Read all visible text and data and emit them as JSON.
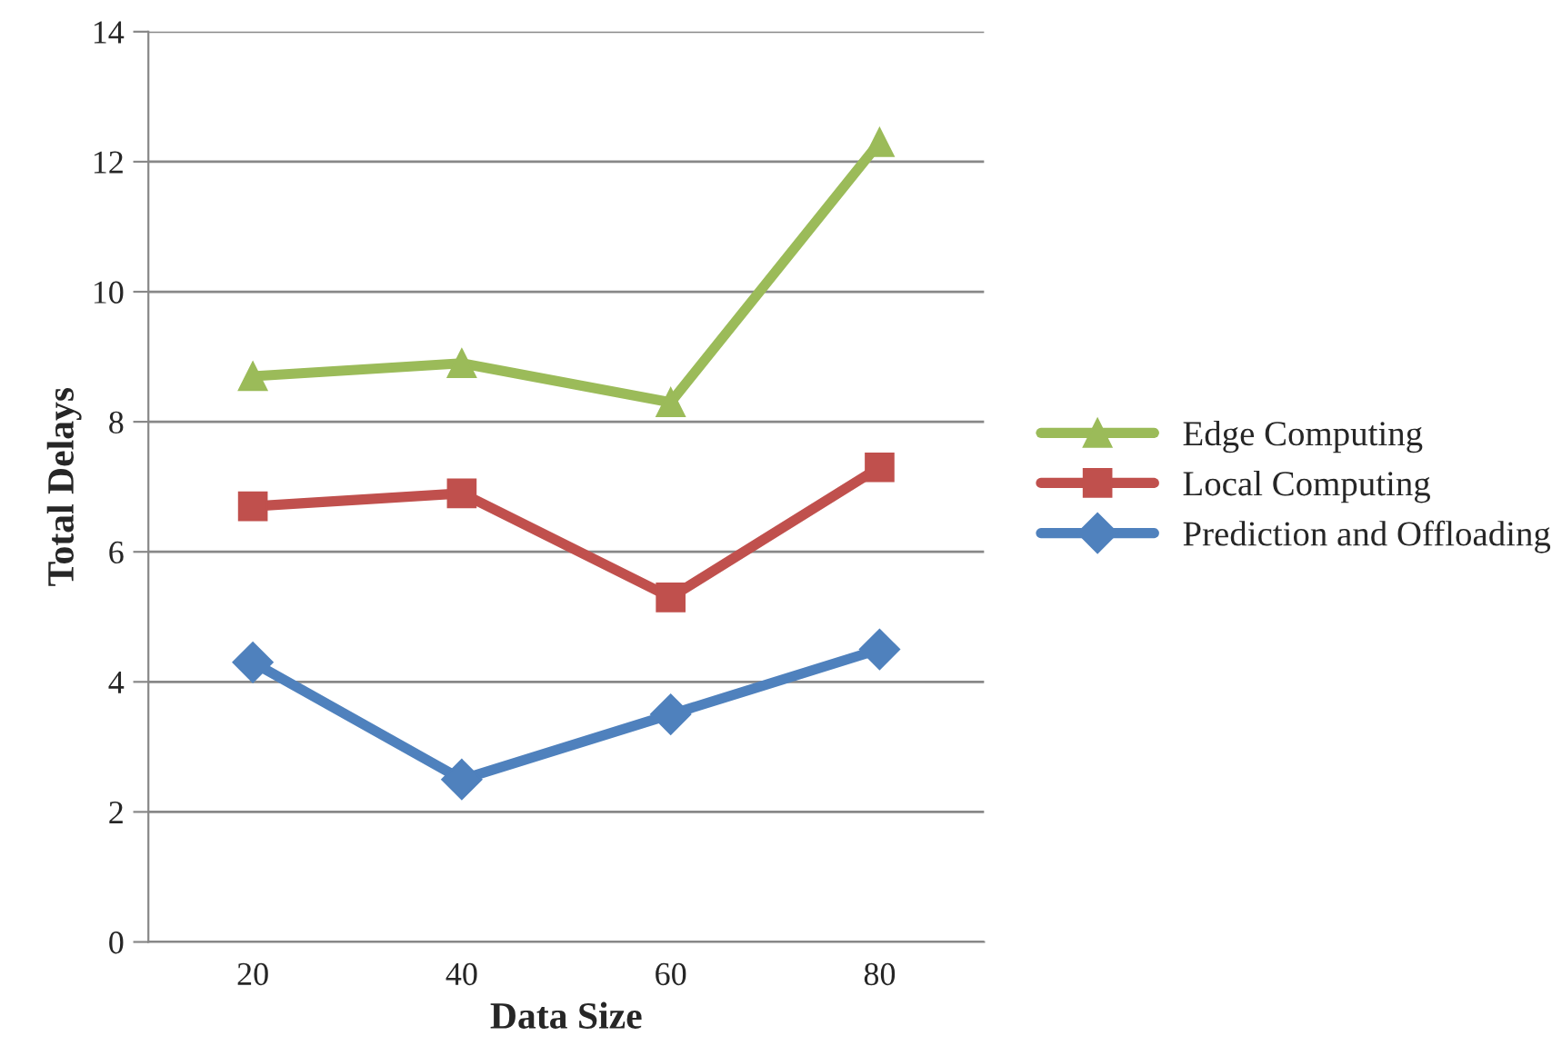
{
  "chart_data": {
    "type": "line",
    "xlabel": "Data Size",
    "ylabel": "Total Delays",
    "categories": [
      "20",
      "40",
      "60",
      "80"
    ],
    "series": [
      {
        "name": "Edge Computing",
        "color": "#9bbb59",
        "marker": "triangle",
        "values": [
          8.7,
          8.9,
          8.3,
          12.3
        ]
      },
      {
        "name": "Local Computing",
        "color": "#c0504d",
        "marker": "square",
        "values": [
          6.7,
          6.9,
          5.3,
          7.3
        ]
      },
      {
        "name": "Prediction and Offloading",
        "color": "#4f81bd",
        "marker": "diamond",
        "values": [
          4.3,
          2.5,
          3.5,
          4.5
        ]
      }
    ],
    "ylim": [
      0,
      14
    ],
    "yticks": [
      0,
      2,
      4,
      6,
      8,
      10,
      12,
      14
    ],
    "grid": "y",
    "legend": "right",
    "line_style": "solid"
  }
}
